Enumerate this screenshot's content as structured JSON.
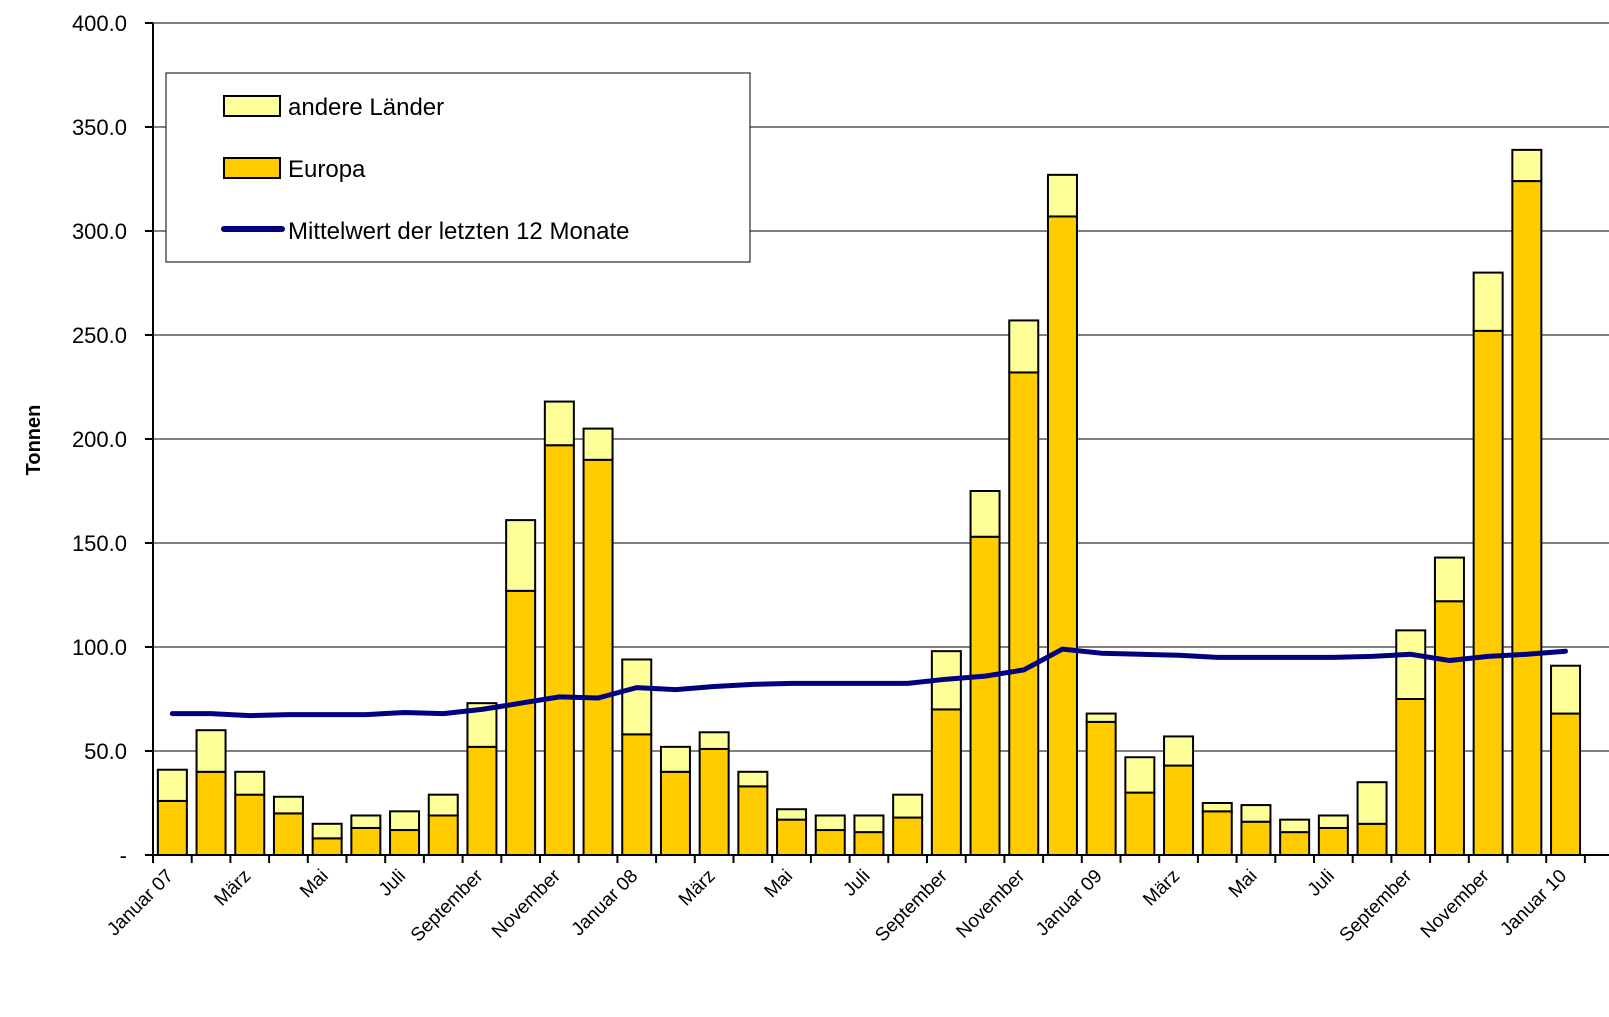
{
  "chart_data": {
    "type": "bar",
    "stacked": true,
    "ylabel": "Tonnen",
    "ylim": [
      0,
      400
    ],
    "grid": true,
    "legend_position": "top-left",
    "yticks": [
      "-",
      "50.0",
      "100.0",
      "150.0",
      "200.0",
      "250.0",
      "300.0",
      "350.0",
      "400.0"
    ],
    "xtick_labels": [
      "Januar 07",
      "März",
      "Mai",
      "Juli",
      "September",
      "November",
      "Januar 08",
      "März",
      "Mai",
      "Juli",
      "September",
      "November",
      "Januar 09",
      "März",
      "Mai",
      "Juli",
      "September",
      "November",
      "Januar 10"
    ],
    "series": [
      {
        "name": "Europa",
        "color": "#FFCC00",
        "values": [
          26,
          40,
          29,
          20,
          8,
          13,
          12,
          19,
          52,
          127,
          197,
          190,
          58,
          40,
          51,
          33,
          17,
          12,
          11,
          18,
          70,
          153,
          232,
          307,
          64,
          30,
          43,
          21,
          16,
          11,
          13,
          15,
          75,
          122,
          252,
          324,
          68
        ]
      },
      {
        "name": "andere Länder",
        "color": "#FFFF99",
        "values": [
          15,
          20,
          11,
          8,
          7,
          6,
          9,
          10,
          21,
          34,
          21,
          15,
          36,
          12,
          8,
          7,
          5,
          7,
          8,
          11,
          28,
          22,
          25,
          20,
          4,
          17,
          14,
          4,
          8,
          6,
          6,
          20,
          33,
          21,
          28,
          15,
          23
        ]
      },
      {
        "name": "Mittelwert der letzten 12 Monate",
        "type": "line",
        "color": "#000080",
        "values": [
          68,
          68,
          67,
          67.5,
          67.5,
          67.5,
          68.5,
          68,
          70,
          73,
          76,
          75.5,
          80.5,
          79.5,
          81,
          82,
          82.5,
          82.5,
          82.5,
          82.5,
          84.5,
          86,
          89,
          99,
          97,
          96.5,
          96,
          95,
          95,
          95,
          95,
          95.5,
          96.5,
          93.5,
          95.5,
          96.5,
          98
        ]
      }
    ]
  }
}
